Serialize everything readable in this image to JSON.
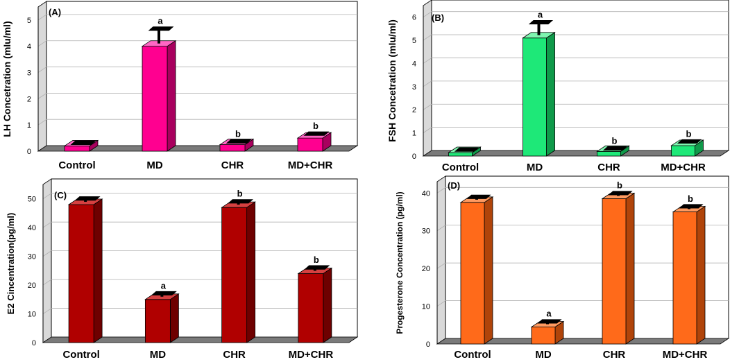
{
  "chart_data": [
    {
      "type": "bar",
      "panel_label": "(A)",
      "ylabel": "LH Concetration (mIu/ml)",
      "categories": [
        "Control",
        "MD",
        "CHR",
        "MD+CHR"
      ],
      "values": [
        0.2,
        4.0,
        0.25,
        0.5
      ],
      "errors": [
        0.05,
        0.6,
        0.05,
        0.1
      ],
      "significance": [
        "",
        "a",
        "b",
        "b"
      ],
      "ylim": [
        0,
        5.5
      ],
      "yticks": [
        0,
        1,
        2,
        3,
        4,
        5
      ],
      "color": "#FF0090",
      "side_color": "#A8005E",
      "top_color": "#FF66C4"
    },
    {
      "type": "bar",
      "panel_label": "(B)",
      "ylabel": "FSH Concetration (mIu/ml)",
      "categories": [
        "Control",
        "MD",
        "CHR",
        "MD+CHR"
      ],
      "values": [
        0.15,
        5.1,
        0.2,
        0.45
      ],
      "errors": [
        0.05,
        0.6,
        0.05,
        0.1
      ],
      "significance": [
        "",
        "a",
        "b",
        "b"
      ],
      "ylim": [
        0,
        6.5
      ],
      "yticks": [
        0,
        1,
        2,
        3,
        4,
        5,
        6
      ],
      "color": "#1EE878",
      "side_color": "#0F9A4A",
      "top_color": "#7FF5B0"
    },
    {
      "type": "bar",
      "panel_label": "(C)",
      "ylabel": "E2 Cincentration(pg/ml)",
      "categories": [
        "Control",
        "MD",
        "CHR",
        "MD+CHR"
      ],
      "values": [
        48,
        15,
        47,
        24
      ],
      "errors": [
        1.5,
        1.5,
        1.5,
        1.5
      ],
      "significance": [
        "",
        "a",
        "b",
        "b"
      ],
      "ylim": [
        0,
        55
      ],
      "yticks": [
        0,
        10,
        20,
        30,
        40,
        50
      ],
      "color": "#B00000",
      "side_color": "#6E0000",
      "top_color": "#D64040"
    },
    {
      "type": "bar",
      "panel_label": "(D)",
      "ylabel": "Progesterone Concentration (pg/ml)",
      "categories": [
        "Control",
        "MD",
        "CHR",
        "MD+CHR"
      ],
      "values": [
        37.5,
        4.5,
        38.5,
        35
      ],
      "errors": [
        1,
        1,
        1,
        1
      ],
      "significance": [
        "",
        "a",
        "b",
        "b"
      ],
      "ylim": [
        0,
        43
      ],
      "yticks": [
        0,
        10,
        20,
        30,
        40
      ],
      "color": "#FF6A1A",
      "side_color": "#B0440A",
      "top_color": "#FF9A60"
    }
  ]
}
